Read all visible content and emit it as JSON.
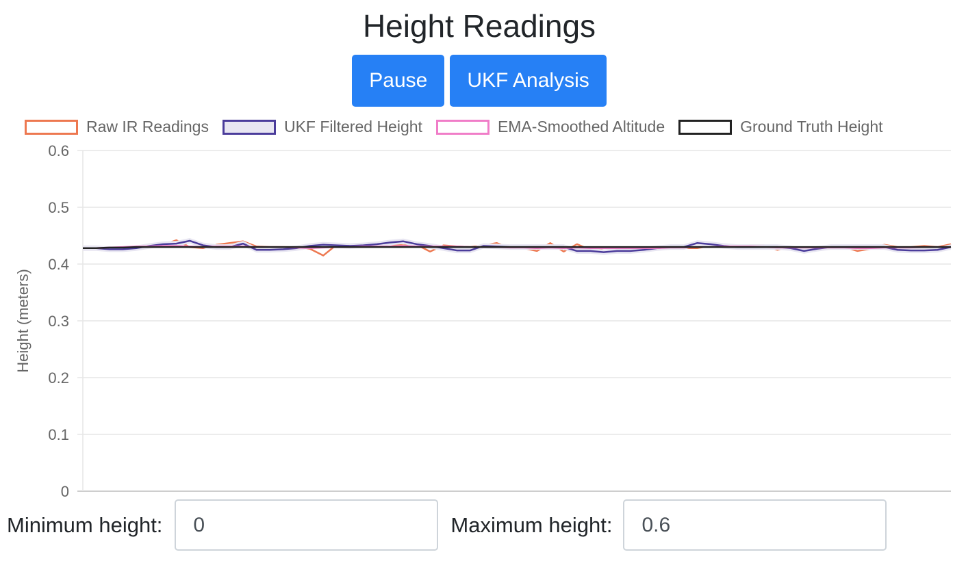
{
  "page": {
    "title": "Height Readings",
    "buttons": {
      "pause": "Pause",
      "ukf": "UKF Analysis"
    },
    "form": {
      "min_label": "Minimum height:",
      "min_value": "0",
      "max_label": "Maximum height:",
      "max_value": "0.6"
    },
    "colors": {
      "button": "#2680f5",
      "grid": "#e6e6e6"
    }
  },
  "chart_data": {
    "type": "line",
    "ylabel": "Height (meters)",
    "xlabel": "",
    "ylim": [
      0,
      0.6
    ],
    "yticks": [
      "0",
      "0.1",
      "0.2",
      "0.3",
      "0.4",
      "0.5",
      "0.6"
    ],
    "grid": true,
    "legend_position": "top",
    "series": [
      {
        "name": "Raw IR Readings",
        "color": "#ed7850",
        "fill": "none",
        "values": [
          null,
          0.425,
          0.425,
          0.428,
          0.431,
          0.433,
          0.434,
          0.442,
          0.43,
          0.428,
          0.434,
          0.437,
          0.44,
          0.431,
          0.43,
          0.43,
          0.43,
          0.427,
          0.415,
          0.434,
          0.432,
          0.432,
          0.434,
          0.435,
          0.433,
          0.434,
          0.422,
          0.433,
          0.431,
          0.43,
          0.433,
          0.437,
          0.428,
          0.428,
          0.423,
          0.437,
          0.422,
          0.435,
          0.425,
          0.428,
          0.428,
          0.428,
          0.428,
          0.428,
          0.428,
          0.428,
          0.428,
          0.432,
          0.434,
          0.432,
          0.433,
          0.433,
          0.425,
          0.43,
          0.427,
          0.428,
          0.43,
          0.43,
          0.423,
          0.427,
          0.434,
          0.43,
          0.43,
          0.432,
          0.43,
          0.435
        ]
      },
      {
        "name": "UKF Filtered Height",
        "color": "#4b3c9b",
        "fill": "#e8e6f2",
        "values": [
          0.428,
          0.428,
          0.426,
          0.426,
          0.428,
          0.432,
          0.435,
          0.436,
          0.441,
          0.433,
          0.43,
          0.43,
          0.436,
          0.425,
          0.425,
          0.426,
          0.428,
          0.432,
          0.434,
          0.433,
          0.432,
          0.433,
          0.435,
          0.438,
          0.44,
          0.435,
          0.432,
          0.428,
          0.424,
          0.424,
          0.432,
          0.431,
          0.43,
          0.43,
          0.43,
          0.43,
          0.43,
          0.423,
          0.423,
          0.421,
          0.423,
          0.423,
          0.425,
          0.428,
          0.43,
          0.43,
          0.437,
          0.435,
          0.432,
          0.43,
          0.43,
          0.43,
          0.43,
          0.428,
          0.423,
          0.427,
          0.43,
          0.43,
          0.43,
          0.43,
          0.43,
          0.425,
          0.424,
          0.424,
          0.425,
          0.43
        ]
      },
      {
        "name": "EMA-Smoothed Altitude",
        "color": "#f07dc8",
        "fill": "none",
        "values": [
          0.428,
          0.428,
          0.429,
          0.43,
          0.431,
          0.431,
          0.432,
          0.432,
          0.431,
          0.43,
          0.431,
          0.431,
          0.431,
          0.43,
          0.43,
          0.43,
          0.429,
          0.428,
          0.429,
          0.43,
          0.43,
          0.431,
          0.431,
          0.431,
          0.432,
          0.431,
          0.431,
          0.431,
          0.431,
          0.43,
          0.43,
          0.43,
          0.429,
          0.429,
          0.428,
          0.429,
          0.428,
          0.429,
          0.428,
          0.428,
          0.428,
          0.428,
          0.428,
          0.428,
          0.429,
          0.429,
          0.43,
          0.43,
          0.431,
          0.431,
          0.431,
          0.43,
          0.429,
          0.429,
          0.429,
          0.429,
          0.429,
          0.429,
          0.428,
          0.428,
          0.429,
          0.429,
          0.429,
          0.43,
          0.43,
          0.43
        ]
      },
      {
        "name": "Ground Truth Height",
        "color": "#222222",
        "fill": "none",
        "values": [
          0.428,
          0.428,
          0.429,
          0.429,
          0.43,
          0.43,
          0.43,
          0.43,
          0.43,
          0.43,
          0.43,
          0.43,
          0.43,
          0.43,
          0.43,
          0.43,
          0.43,
          0.43,
          0.43,
          0.43,
          0.43,
          0.43,
          0.43,
          0.43,
          0.43,
          0.43,
          0.43,
          0.43,
          0.43,
          0.43,
          0.43,
          0.43,
          0.43,
          0.43,
          0.43,
          0.43,
          0.43,
          0.43,
          0.43,
          0.43,
          0.43,
          0.43,
          0.43,
          0.43,
          0.43,
          0.43,
          0.43,
          0.43,
          0.43,
          0.43,
          0.43,
          0.43,
          0.43,
          0.43,
          0.43,
          0.43,
          0.43,
          0.43,
          0.43,
          0.43,
          0.43,
          0.43,
          0.43,
          0.43,
          0.43,
          0.43
        ]
      }
    ]
  }
}
